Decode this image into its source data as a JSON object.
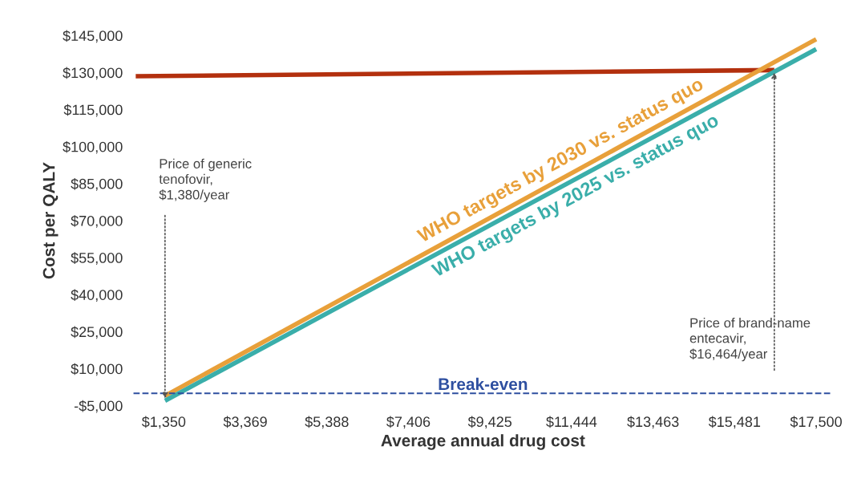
{
  "chart_data": {
    "type": "line",
    "xlabel": "Average annual drug cost",
    "ylabel": "Cost per QALY",
    "series": [
      {
        "color": "#b3300e",
        "x": [
          655,
          16464
        ],
        "values": [
          128500,
          131000
        ]
      },
      {
        "name": "WHO targets by 2030 vs. status quo",
        "color": "#e8a03a",
        "x": [
          1380,
          17500
        ],
        "values": [
          -1000,
          143500
        ]
      },
      {
        "name": "WHO targets by 2025 vs. status quo",
        "color": "#3aaeaa",
        "x": [
          1380,
          17500
        ],
        "values": [
          -3000,
          139500
        ]
      }
    ],
    "xlim": [
      600,
      17900
    ],
    "ylim": [
      -5000,
      145000
    ],
    "xticks": [
      {
        "value": 1350,
        "label": "$1,350"
      },
      {
        "value": 3369,
        "label": "$3,369"
      },
      {
        "value": 5388,
        "label": "$5,388"
      },
      {
        "value": 7406,
        "label": "$7,406"
      },
      {
        "value": 9425,
        "label": "$9,425"
      },
      {
        "value": 11444,
        "label": "$11,444"
      },
      {
        "value": 13463,
        "label": "$13,463"
      },
      {
        "value": 15481,
        "label": "$15,481"
      },
      {
        "value": 17500,
        "label": "$17,500"
      }
    ],
    "yticks": [
      {
        "value": -5000,
        "label": "-$5,000"
      },
      {
        "value": 10000,
        "label": "$10,000"
      },
      {
        "value": 25000,
        "label": "$25,000"
      },
      {
        "value": 40000,
        "label": "$40,000"
      },
      {
        "value": 55000,
        "label": "$55,000"
      },
      {
        "value": 70000,
        "label": "$70,000"
      },
      {
        "value": 85000,
        "label": "$85,000"
      },
      {
        "value": 100000,
        "label": "$100,000"
      },
      {
        "value": 115000,
        "label": "$115,000"
      },
      {
        "value": 130000,
        "label": "$130,000"
      },
      {
        "value": 145000,
        "label": "$145,000"
      }
    ],
    "ref_lines": [
      {
        "axis": "y",
        "value": 0,
        "label": "Break-even",
        "color": "#2e4fa0",
        "line_style": "dashed"
      }
    ],
    "annotations": [
      {
        "text": "Price of generic\ntenofovir,\n$1,380/year",
        "x": 1380,
        "y": -3000
      },
      {
        "text": "Price of brand-name\nentecavir,\n$16,464/year",
        "x": 16464,
        "y": 131000
      }
    ],
    "grid": false,
    "legend": false
  }
}
